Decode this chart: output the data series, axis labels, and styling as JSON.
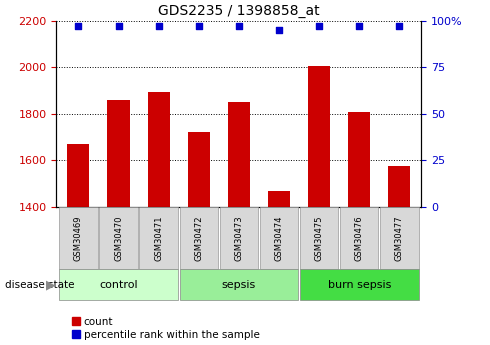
{
  "title": "GDS2235 / 1398858_at",
  "samples": [
    "GSM30469",
    "GSM30470",
    "GSM30471",
    "GSM30472",
    "GSM30473",
    "GSM30474",
    "GSM30475",
    "GSM30476",
    "GSM30477"
  ],
  "bar_values": [
    1670,
    1860,
    1895,
    1720,
    1850,
    1470,
    2005,
    1810,
    1575
  ],
  "percentile_values": [
    97,
    97,
    97,
    97,
    97,
    95,
    97,
    97,
    97
  ],
  "ylim_left": [
    1400,
    2200
  ],
  "ylim_right": [
    0,
    100
  ],
  "yticks_left": [
    1400,
    1600,
    1800,
    2000,
    2200
  ],
  "yticks_right": [
    0,
    25,
    50,
    75,
    100
  ],
  "bar_color": "#cc0000",
  "dot_color": "#0000cc",
  "group_info": [
    {
      "label": "control",
      "start": 0,
      "end": 2,
      "color": "#ccffcc"
    },
    {
      "label": "sepsis",
      "start": 3,
      "end": 5,
      "color": "#99ee99"
    },
    {
      "label": "burn sepsis",
      "start": 6,
      "end": 8,
      "color": "#44dd44"
    }
  ],
  "xlabel_color": "#cc0000",
  "ylabel_right_color": "#0000cc",
  "legend_count_label": "count",
  "legend_pct_label": "percentile rank within the sample",
  "disease_state_label": "disease state"
}
